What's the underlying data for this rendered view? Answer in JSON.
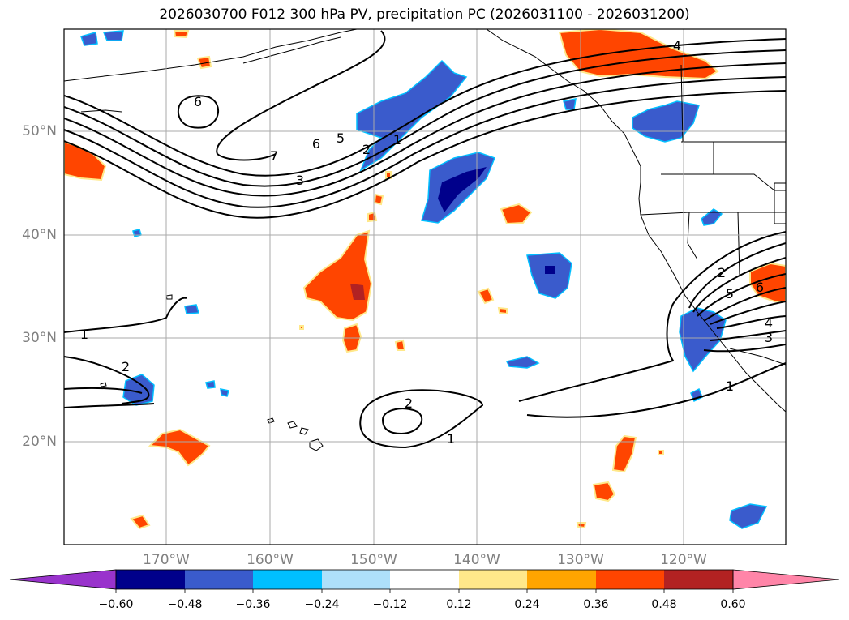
{
  "title": "2026030700 F012 300 hPa PV, precipitation PC (2026031100 - 2026031200)",
  "lat_labels": [
    "50°N",
    "40°N",
    "30°N",
    "20°N"
  ],
  "lon_labels": [
    "170°W",
    "160°W",
    "150°W",
    "140°W",
    "130°W",
    "120°W"
  ],
  "contour_labels": [
    "6",
    "7",
    "6",
    "5",
    "2",
    "1",
    "3",
    "4",
    "1",
    "2",
    "2",
    "1",
    "2",
    "5",
    "6",
    "4",
    "3",
    "1"
  ],
  "colorbar": {
    "ticks": [
      "−0.60",
      "−0.48",
      "−0.36",
      "−0.24",
      "−0.12",
      "0.12",
      "0.24",
      "0.36",
      "0.48",
      "0.60"
    ],
    "colors": [
      "#9933cc",
      "#00008b",
      "#3a5bcc",
      "#00bfff",
      "#aee0fa",
      "#ffffff",
      "#ffe88a",
      "#ffa500",
      "#ff4500",
      "#b22222",
      "#ff85a8"
    ]
  },
  "colors": {
    "outline": "#000000",
    "grid": "#aaaaaa",
    "axis_label": "#808080"
  }
}
